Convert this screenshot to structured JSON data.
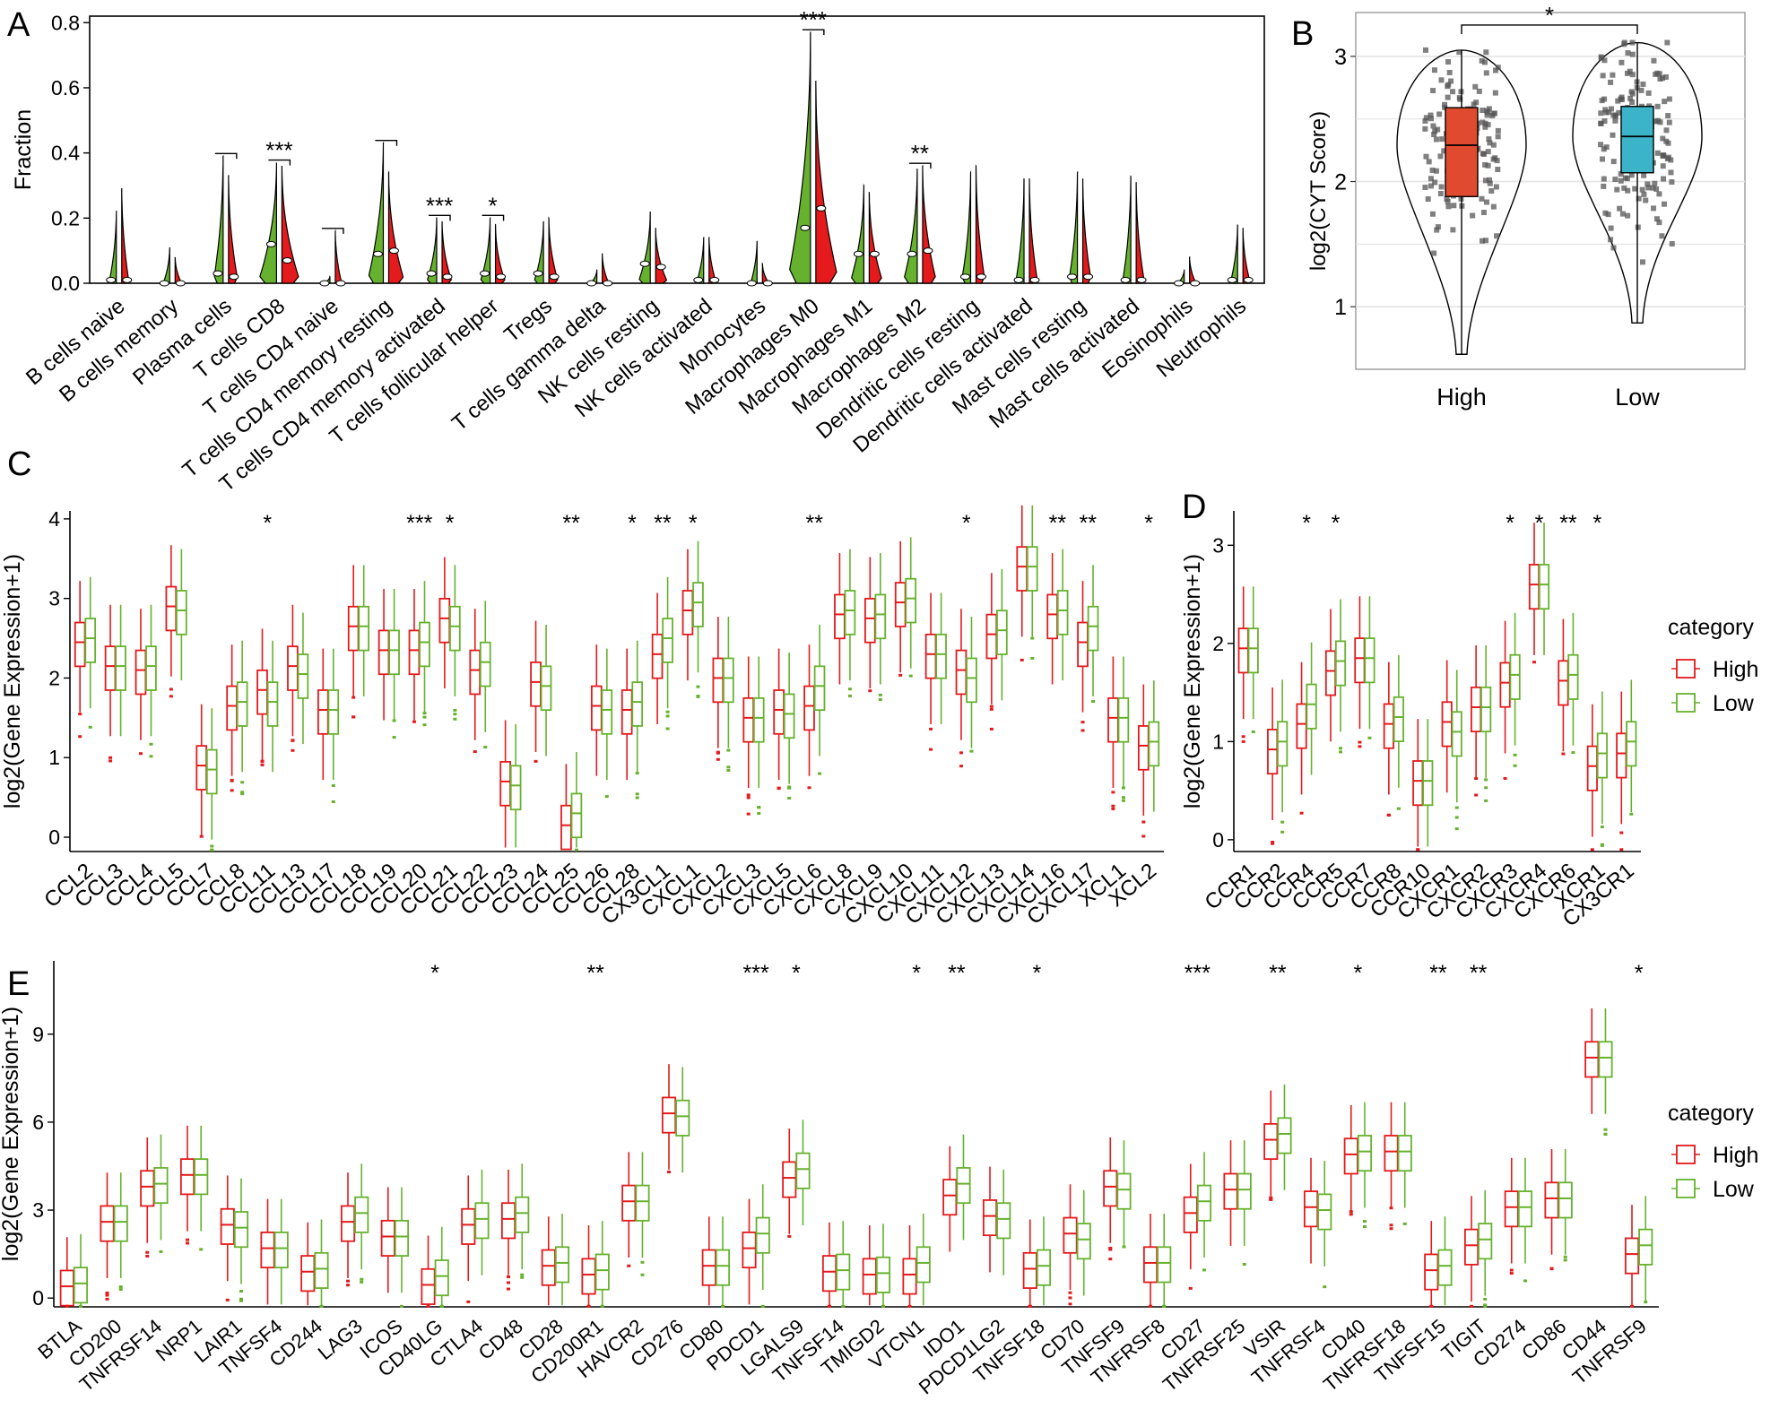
{
  "colors": {
    "high": "#E41A1C",
    "low": "#66B22E",
    "high_fill": "#E04A2F",
    "low_fill": "#3BB3C8",
    "point": "#555555",
    "grid": "#E5E5E5"
  },
  "chart_data": [
    {
      "id": "A",
      "type": "violin",
      "panel_label": "A",
      "ylabel": "Fraction",
      "ylim": [
        0,
        0.82
      ],
      "yticks": [
        "0.0",
        "0.2",
        "0.4",
        "0.6",
        "0.8"
      ],
      "ytick_values": [
        0,
        0.2,
        0.4,
        0.6,
        0.8
      ],
      "series": [
        {
          "name": "High",
          "color": "#66B22E"
        },
        {
          "name": "Low",
          "color": "#E41A1C"
        }
      ],
      "categories": [
        "B cells naive",
        "B cells memory",
        "Plasma cells",
        "T cells CD8",
        "T cells CD4 naive",
        "T cells CD4 memory resting",
        "T cells CD4 memory activated",
        "T cells follicular helper",
        "Tregs",
        "T cells gamma delta",
        "NK cells resting",
        "NK cells activated",
        "Monocytes",
        "Macrophages M0",
        "Macrophages M1",
        "Macrophages M2",
        "Dendritic cells resting",
        "Dendritic cells activated",
        "Mast cells resting",
        "Mast cells activated",
        "Eosinophils",
        "Neutrophils"
      ],
      "max_high": [
        0.22,
        0.11,
        0.39,
        0.37,
        0.02,
        0.43,
        0.2,
        0.2,
        0.19,
        0.04,
        0.22,
        0.14,
        0.13,
        0.77,
        0.3,
        0.35,
        0.34,
        0.32,
        0.34,
        0.33,
        0.04,
        0.18
      ],
      "max_low": [
        0.29,
        0.08,
        0.33,
        0.36,
        0.16,
        0.34,
        0.19,
        0.18,
        0.2,
        0.09,
        0.17,
        0.14,
        0.06,
        0.62,
        0.28,
        0.36,
        0.36,
        0.32,
        0.32,
        0.31,
        0.08,
        0.17
      ],
      "median_high": [
        0.01,
        0.0,
        0.03,
        0.12,
        0.0,
        0.09,
        0.03,
        0.03,
        0.03,
        0.0,
        0.06,
        0.01,
        0.0,
        0.17,
        0.09,
        0.09,
        0.02,
        0.01,
        0.02,
        0.01,
        0.0,
        0.01
      ],
      "median_low": [
        0.01,
        0.0,
        0.02,
        0.07,
        0.0,
        0.1,
        0.02,
        0.02,
        0.02,
        0.0,
        0.05,
        0.01,
        0.0,
        0.23,
        0.09,
        0.1,
        0.02,
        0.01,
        0.02,
        0.01,
        0.0,
        0.01
      ],
      "bulk": [
        0.02,
        0.0,
        0.07,
        0.25,
        0.0,
        0.2,
        0.08,
        0.08,
        0.07,
        0.0,
        0.12,
        0.02,
        0.0,
        0.42,
        0.15,
        0.16,
        0.06,
        0.04,
        0.05,
        0.04,
        0.0,
        0.02
      ],
      "significance": [
        {
          "index": 2,
          "label": "",
          "y": 0.39
        },
        {
          "index": 3,
          "label": "***",
          "y": 0.37
        },
        {
          "index": 4,
          "label": "",
          "y": 0.16
        },
        {
          "index": 5,
          "label": "",
          "y": 0.43
        },
        {
          "index": 6,
          "label": "***",
          "y": 0.2
        },
        {
          "index": 7,
          "label": "*",
          "y": 0.2
        },
        {
          "index": 13,
          "label": "***",
          "y": 0.77
        },
        {
          "index": 15,
          "label": "**",
          "y": 0.36
        }
      ]
    },
    {
      "id": "B",
      "type": "violin-box-scatter",
      "panel_label": "B",
      "ylabel": "log2(CYT Score)",
      "ylim": [
        0.5,
        3.35
      ],
      "yticks": [
        "1",
        "2",
        "3"
      ],
      "ytick_values": [
        1,
        2,
        3
      ],
      "categories": [
        "High",
        "Low"
      ],
      "boxes": [
        {
          "name": "High",
          "q1": 1.88,
          "median": 2.29,
          "q3": 2.59,
          "min": 0.62,
          "max": 3.05,
          "color": "#E04A2F"
        },
        {
          "name": "Low",
          "q1": 2.07,
          "median": 2.36,
          "q3": 2.6,
          "min": 0.87,
          "max": 3.11,
          "color": "#3BB3C8"
        }
      ],
      "significance": [
        {
          "between": [
            0,
            1
          ],
          "label": "*",
          "y": 3.25
        }
      ]
    },
    {
      "id": "C",
      "type": "box",
      "panel_label": "C",
      "ylabel": "log2(Gene Expression+1)",
      "ylim": [
        -0.18,
        4.1
      ],
      "yticks": [
        "0",
        "1",
        "2",
        "3",
        "4"
      ],
      "ytick_values": [
        0,
        1,
        2,
        3,
        4
      ],
      "series": [
        {
          "name": "High",
          "color": "#E41A1C"
        },
        {
          "name": "Low",
          "color": "#66B22E"
        }
      ],
      "categories": [
        "CCL2",
        "CCL3",
        "CCL4",
        "CCL5",
        "CCL7",
        "CCL8",
        "CCL11",
        "CCL13",
        "CCL17",
        "CCL18",
        "CCL19",
        "CCL20",
        "CCL21",
        "CCL22",
        "CCL23",
        "CCL24",
        "CCL25",
        "CCL26",
        "CCL28",
        "CX3CL1",
        "CXCL1",
        "CXCL2",
        "CXCL3",
        "CXCL5",
        "CXCL6",
        "CXCL8",
        "CXCL9",
        "CXCL10",
        "CXCL11",
        "CXCL12",
        "CXCL13",
        "CXCL14",
        "CXCL16",
        "CXCL17",
        "XCL1",
        "XCL2"
      ],
      "median_high": [
        2.45,
        2.15,
        2.1,
        2.9,
        0.9,
        1.65,
        1.85,
        2.15,
        1.6,
        2.65,
        2.35,
        2.35,
        2.75,
        2.1,
        0.7,
        1.95,
        0.15,
        1.65,
        1.6,
        2.3,
        2.85,
        2.0,
        1.5,
        1.6,
        1.65,
        2.8,
        2.75,
        2.95,
        2.3,
        2.1,
        2.55,
        3.4,
        2.8,
        2.45,
        1.5,
        1.15
      ],
      "median_low": [
        2.5,
        2.15,
        2.15,
        2.85,
        0.85,
        1.7,
        1.7,
        2.05,
        1.6,
        2.65,
        2.35,
        2.45,
        2.65,
        2.2,
        0.65,
        1.9,
        0.3,
        1.6,
        1.7,
        2.5,
        2.95,
        2.0,
        1.5,
        1.55,
        1.9,
        2.85,
        2.8,
        3.0,
        2.3,
        2.0,
        2.6,
        3.4,
        2.85,
        2.65,
        1.5,
        1.2
      ],
      "significance": [
        {
          "index": 6,
          "label": "*"
        },
        {
          "index": 11,
          "label": "***"
        },
        {
          "index": 12,
          "label": "*"
        },
        {
          "index": 16,
          "label": "**"
        },
        {
          "index": 18,
          "label": "*"
        },
        {
          "index": 19,
          "label": "**"
        },
        {
          "index": 20,
          "label": "*"
        },
        {
          "index": 24,
          "label": "**"
        },
        {
          "index": 29,
          "label": "*"
        },
        {
          "index": 32,
          "label": "**"
        },
        {
          "index": 33,
          "label": "**"
        },
        {
          "index": 35,
          "label": "*"
        }
      ]
    },
    {
      "id": "D",
      "type": "box",
      "panel_label": "D",
      "ylabel": "log2(Gene Expression+1)",
      "ylim": [
        -0.12,
        3.35
      ],
      "yticks": [
        "0",
        "1",
        "2",
        "3"
      ],
      "ytick_values": [
        0,
        1,
        2,
        3
      ],
      "series": [
        {
          "name": "High",
          "color": "#E41A1C"
        },
        {
          "name": "Low",
          "color": "#66B22E"
        }
      ],
      "legend_title": "category",
      "categories": [
        "CCR1",
        "CCR2",
        "CCR4",
        "CCR5",
        "CCR7",
        "CCR8",
        "CCR10",
        "CXCR1",
        "CXCR2",
        "CXCR3",
        "CXCR4",
        "CXCR6",
        "XCR1",
        "CX3CR1"
      ],
      "median_high": [
        1.95,
        0.92,
        1.18,
        1.72,
        1.85,
        1.18,
        0.6,
        1.2,
        1.35,
        1.6,
        2.6,
        1.62,
        0.75,
        0.88
      ],
      "median_low": [
        1.95,
        1.0,
        1.38,
        1.82,
        1.85,
        1.25,
        0.6,
        1.1,
        1.35,
        1.68,
        2.6,
        1.68,
        0.88,
        1.0
      ],
      "significance": [
        {
          "index": 2,
          "label": "*"
        },
        {
          "index": 3,
          "label": "*"
        },
        {
          "index": 9,
          "label": "*"
        },
        {
          "index": 10,
          "label": "*"
        },
        {
          "index": 11,
          "label": "**"
        },
        {
          "index": 12,
          "label": "*"
        }
      ]
    },
    {
      "id": "E",
      "type": "box",
      "panel_label": "E",
      "ylabel": "log2(Gene Expression+1)",
      "ylim": [
        -0.3,
        11.5
      ],
      "yticks": [
        "0",
        "3",
        "6",
        "9"
      ],
      "ytick_values": [
        0,
        3,
        6,
        9
      ],
      "series": [
        {
          "name": "High",
          "color": "#E41A1C"
        },
        {
          "name": "Low",
          "color": "#66B22E"
        }
      ],
      "legend_title": "category",
      "categories": [
        "BTLA",
        "CD200",
        "TNFRSF14",
        "NRP1",
        "LAIR1",
        "TNFSF4",
        "CD244",
        "LAG3",
        "ICOS",
        "CD40LG",
        "CTLA4",
        "CD48",
        "CD28",
        "CD200R1",
        "HAVCR2",
        "CD276",
        "CD80",
        "PDCD1",
        "LGALS9",
        "TNFSF14",
        "TMIGD2",
        "VTCN1",
        "IDO1",
        "PDCD1LG2",
        "TNFSF18",
        "CD70",
        "TNFSF9",
        "TNFRSF8",
        "CD27",
        "TNFRSF25",
        "VSIR",
        "TNFRSF4",
        "CD40",
        "TNFRSF18",
        "TNFSF15",
        "TIGIT",
        "CD274",
        "CD86",
        "CD44",
        "TNFRSF9"
      ],
      "median_high": [
        0.4,
        2.6,
        3.8,
        4.2,
        2.5,
        1.7,
        0.9,
        2.6,
        2.1,
        0.45,
        2.5,
        2.7,
        1.1,
        0.8,
        3.3,
        6.3,
        1.1,
        1.7,
        4.1,
        0.9,
        0.8,
        0.8,
        3.5,
        2.8,
        1.0,
        2.2,
        3.8,
        1.2,
        2.9,
        3.7,
        5.4,
        3.1,
        4.9,
        5.0,
        0.95,
        1.8,
        3.1,
        3.4,
        8.2,
        1.5
      ],
      "median_low": [
        0.5,
        2.6,
        3.9,
        4.2,
        2.4,
        1.7,
        1.0,
        2.9,
        2.1,
        0.75,
        2.7,
        2.9,
        1.2,
        0.95,
        3.3,
        6.2,
        1.1,
        2.2,
        4.4,
        0.95,
        0.85,
        1.2,
        3.9,
        2.7,
        1.1,
        2.0,
        3.7,
        1.2,
        3.3,
        3.7,
        5.6,
        3.0,
        5.0,
        5.0,
        1.1,
        2.0,
        3.1,
        3.4,
        8.2,
        1.8
      ],
      "significance": [
        {
          "index": 9,
          "label": "*"
        },
        {
          "index": 13,
          "label": "**"
        },
        {
          "index": 17,
          "label": "***"
        },
        {
          "index": 18,
          "label": "*"
        },
        {
          "index": 21,
          "label": "*"
        },
        {
          "index": 22,
          "label": "**"
        },
        {
          "index": 24,
          "label": "*"
        },
        {
          "index": 28,
          "label": "***"
        },
        {
          "index": 30,
          "label": "**"
        },
        {
          "index": 32,
          "label": "*"
        },
        {
          "index": 34,
          "label": "**"
        },
        {
          "index": 35,
          "label": "**"
        },
        {
          "index": 39,
          "label": "*"
        }
      ]
    }
  ]
}
